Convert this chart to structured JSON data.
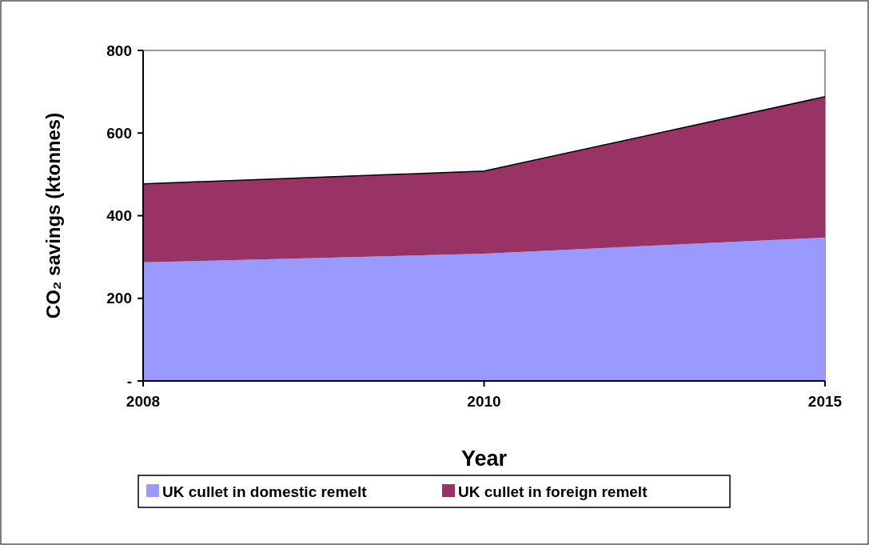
{
  "chart_data": {
    "type": "area",
    "stacked": true,
    "xlabel": "Year",
    "ylabel": "CO₂ savings (ktonnes)",
    "categories": [
      "2008",
      "2010",
      "2015"
    ],
    "series": [
      {
        "name": "UK cullet in domestic remelt",
        "color": "#9999ff",
        "values": [
          287,
          308,
          347
        ]
      },
      {
        "name": "UK cullet in foreign remelt",
        "color": "#993366",
        "values": [
          190,
          200,
          341
        ]
      }
    ],
    "ylim": [
      0,
      800
    ],
    "yticks": [
      {
        "value": 0,
        "label": "-"
      },
      200,
      400,
      600,
      800
    ],
    "grid": false,
    "legend": "bottom"
  }
}
